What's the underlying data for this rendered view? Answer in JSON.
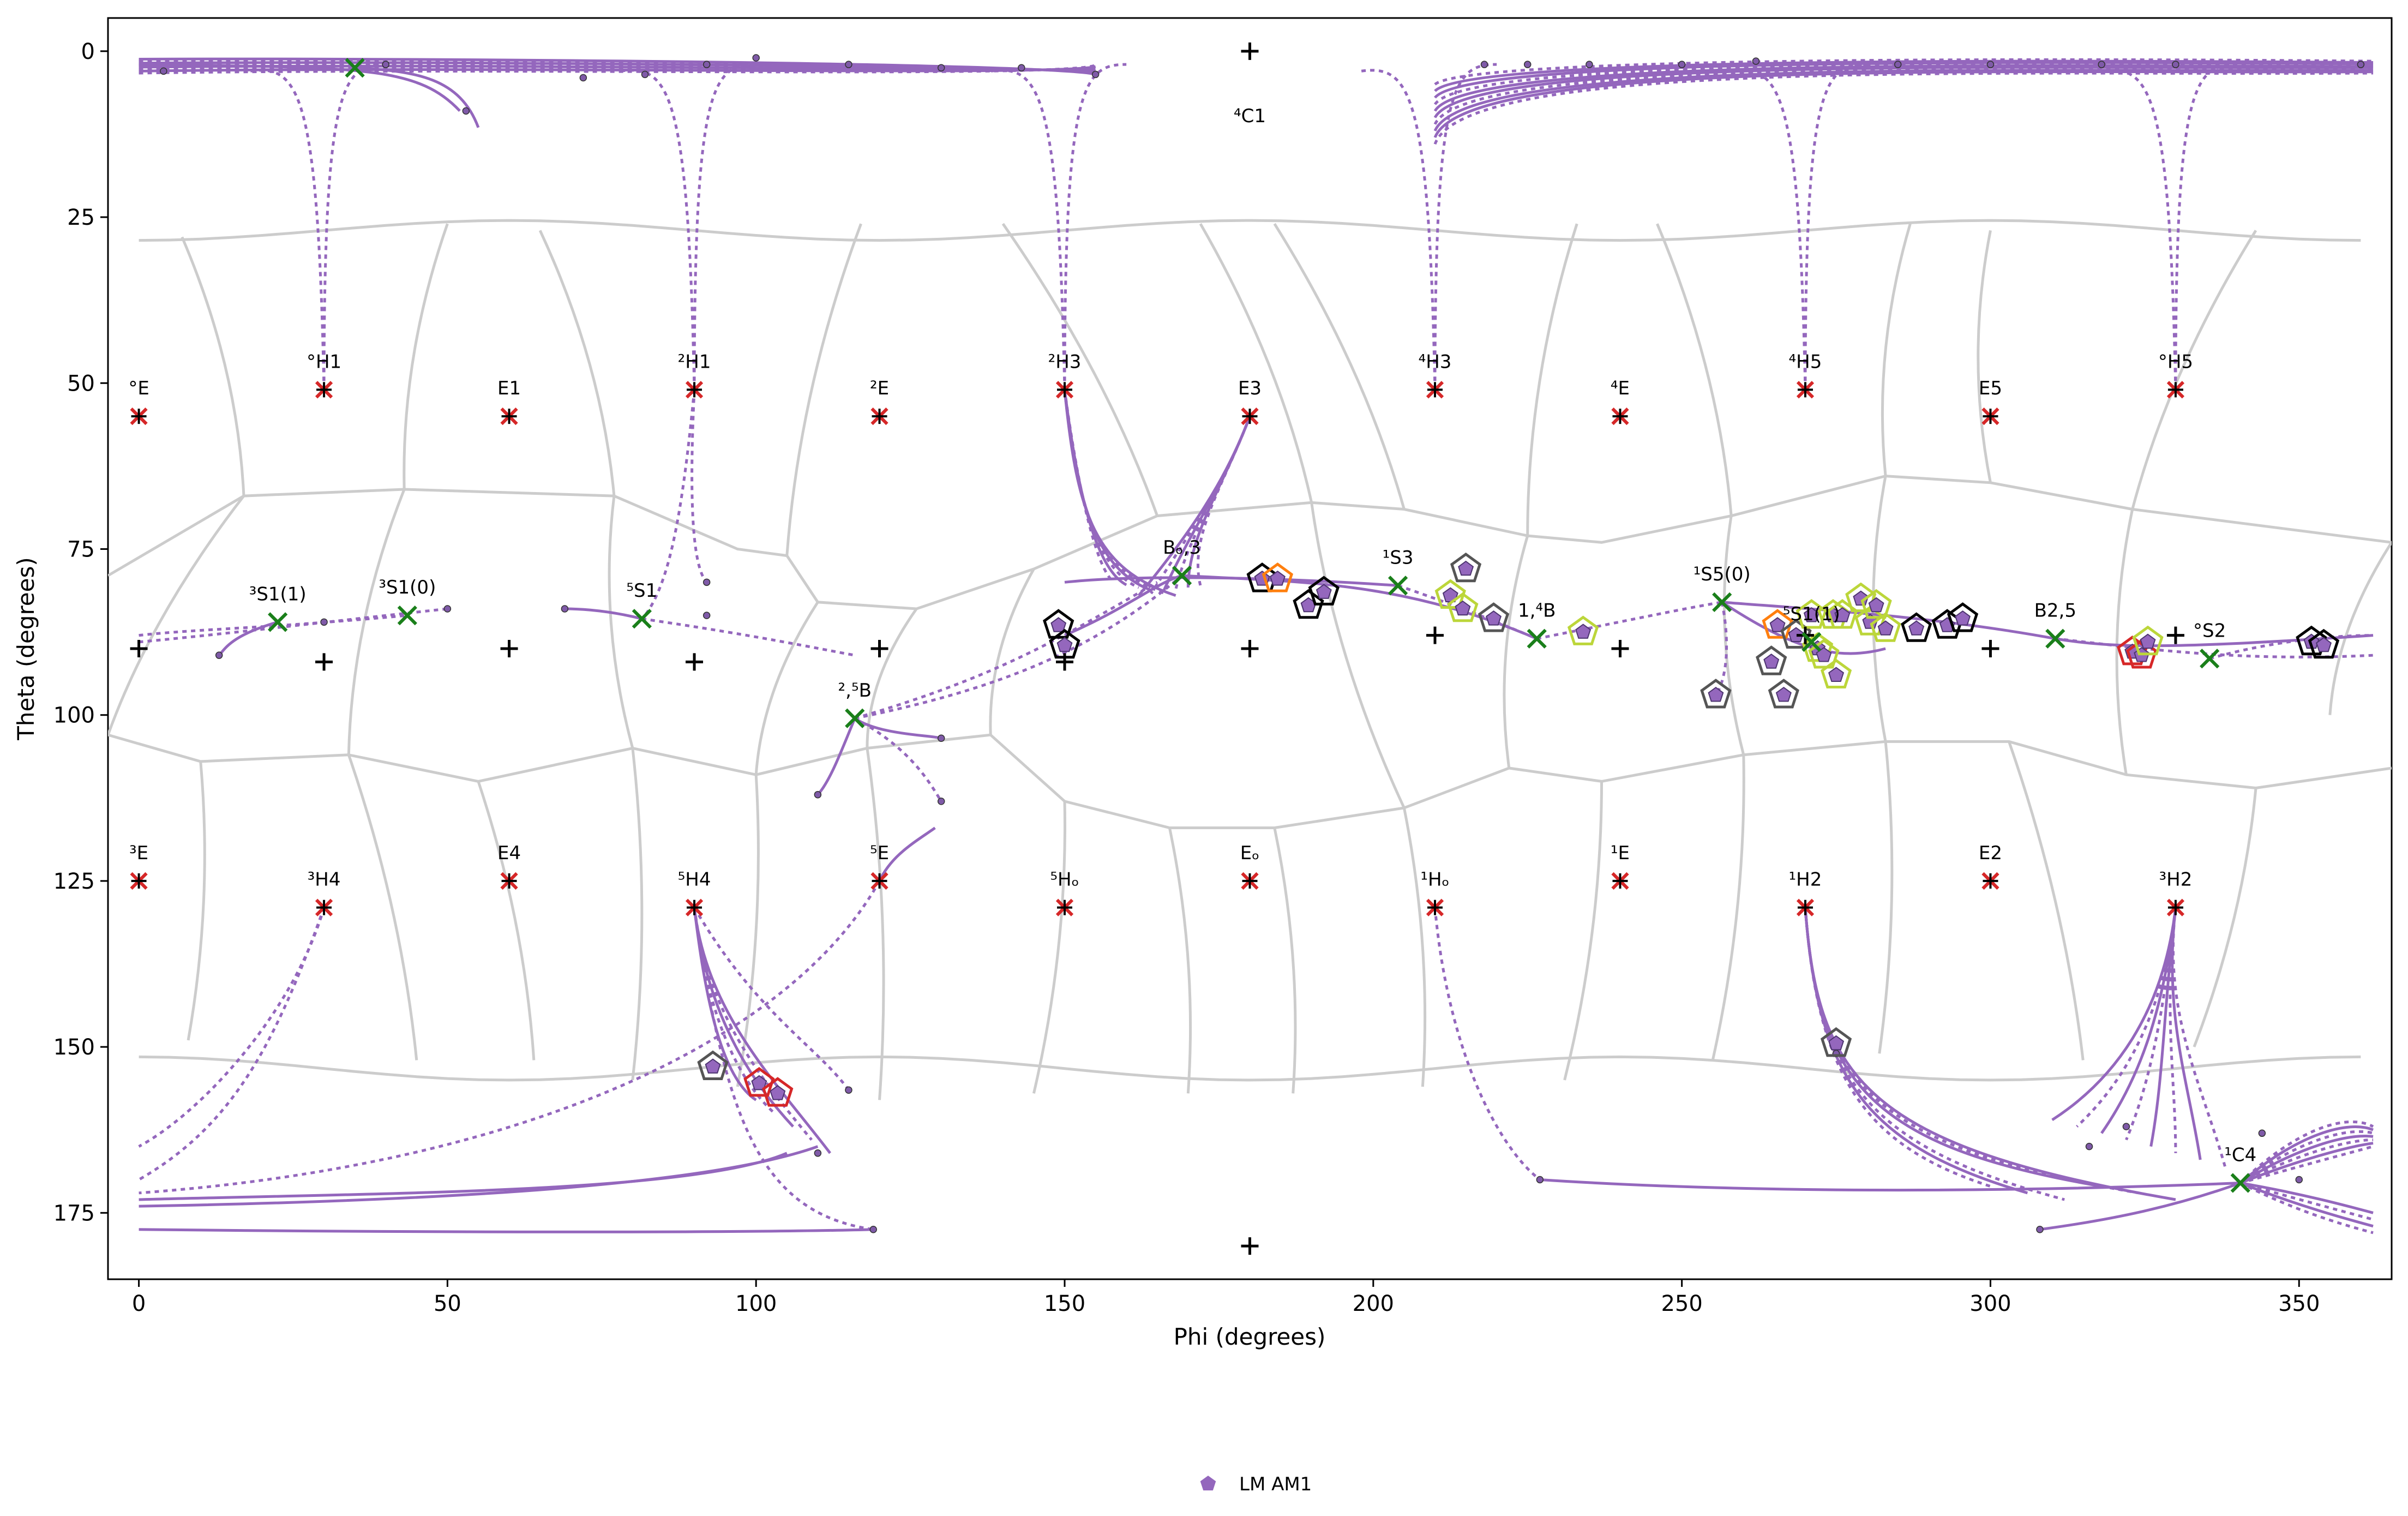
{
  "chart_data": {
    "type": "scatter",
    "xlabel": "Phi (degrees)",
    "ylabel": "Theta (degrees)",
    "xlim": [
      -5,
      365
    ],
    "ylim": [
      185,
      -5
    ],
    "xticks": [
      0,
      50,
      100,
      150,
      200,
      250,
      300,
      350
    ],
    "yticks": [
      0,
      25,
      50,
      75,
      100,
      125,
      150,
      175
    ],
    "xtick_labels": [
      "0",
      "50",
      "100",
      "150",
      "200",
      "250",
      "300",
      "350"
    ],
    "ytick_labels": [
      "0",
      "25",
      "50",
      "75",
      "100",
      "125",
      "150",
      "175"
    ],
    "legend": {
      "placement": "bottom-center",
      "entries": [
        {
          "label": "LM AM1",
          "marker": "pentagon",
          "color": "#9467bd"
        }
      ]
    },
    "colors": {
      "pathway": "#9467bd",
      "canonical_marker": "#d62728",
      "transition_state": "#1a7f1a",
      "cell_boundary": "#cccccc",
      "plus_marker": "#000000"
    },
    "canonical_points": [
      {
        "label": "°E",
        "phi": 0,
        "theta": 55
      },
      {
        "label": "°H1",
        "phi": 30,
        "theta": 51
      },
      {
        "label": "E1",
        "phi": 60,
        "theta": 55
      },
      {
        "label": "²H1",
        "phi": 90,
        "theta": 51
      },
      {
        "label": "²E",
        "phi": 120,
        "theta": 55
      },
      {
        "label": "²H3",
        "phi": 150,
        "theta": 51
      },
      {
        "label": "E3",
        "phi": 180,
        "theta": 55
      },
      {
        "label": "⁴H3",
        "phi": 210,
        "theta": 51
      },
      {
        "label": "⁴E",
        "phi": 240,
        "theta": 55
      },
      {
        "label": "⁴H5",
        "phi": 270,
        "theta": 51
      },
      {
        "label": "E5",
        "phi": 300,
        "theta": 55
      },
      {
        "label": "°H5",
        "phi": 330,
        "theta": 51
      },
      {
        "label": "³E",
        "phi": 0,
        "theta": 125
      },
      {
        "label": "³H4",
        "phi": 30,
        "theta": 129
      },
      {
        "label": "E4",
        "phi": 60,
        "theta": 125
      },
      {
        "label": "⁵H4",
        "phi": 90,
        "theta": 129
      },
      {
        "label": "⁵E",
        "phi": 120,
        "theta": 125
      },
      {
        "label": "⁵Hₒ",
        "phi": 150,
        "theta": 129
      },
      {
        "label": "Eₒ",
        "phi": 180,
        "theta": 125
      },
      {
        "label": "¹Hₒ",
        "phi": 210,
        "theta": 129
      },
      {
        "label": "¹E",
        "phi": 240,
        "theta": 125
      },
      {
        "label": "¹H2",
        "phi": 270,
        "theta": 129
      },
      {
        "label": "E2",
        "phi": 300,
        "theta": 125
      },
      {
        "label": "³H2",
        "phi": 330,
        "theta": 129
      }
    ],
    "plus_points": [
      {
        "label": "⁴C1",
        "phi": 180,
        "theta": 0
      },
      {
        "label": "",
        "phi": 180,
        "theta": 180
      },
      {
        "label": "",
        "phi": 0,
        "theta": 90
      },
      {
        "label": "",
        "phi": 30,
        "theta": 92
      },
      {
        "label": "",
        "phi": 60,
        "theta": 90
      },
      {
        "label": "",
        "phi": 90,
        "theta": 92
      },
      {
        "label": "",
        "phi": 120,
        "theta": 90
      },
      {
        "label": "",
        "phi": 150,
        "theta": 92
      },
      {
        "label": "",
        "phi": 180,
        "theta": 90
      },
      {
        "label": "",
        "phi": 210,
        "theta": 88
      },
      {
        "label": "",
        "phi": 240,
        "theta": 90
      },
      {
        "label": "",
        "phi": 270,
        "theta": 88
      },
      {
        "label": "",
        "phi": 300,
        "theta": 90
      },
      {
        "label": "",
        "phi": 330,
        "theta": 88
      }
    ],
    "transition_states": [
      {
        "label": "",
        "phi": 35,
        "theta": 2.5
      },
      {
        "label": "³S1(1)",
        "phi": 22.5,
        "theta": 86
      },
      {
        "label": "³S1(0)",
        "phi": 43.5,
        "theta": 85
      },
      {
        "label": "⁵S1",
        "phi": 81.5,
        "theta": 85.5
      },
      {
        "label": "²,⁵B",
        "phi": 116,
        "theta": 100.5
      },
      {
        "label": "Bₒ,3",
        "phi": 169,
        "theta": 79
      },
      {
        "label": "¹S3",
        "phi": 204,
        "theta": 80.5
      },
      {
        "label": "1,⁴B",
        "phi": 226.5,
        "theta": 88.5
      },
      {
        "label": "¹S5(0)",
        "phi": 256.5,
        "theta": 83
      },
      {
        "label": "⁵S1(1)",
        "phi": 271,
        "theta": 89
      },
      {
        "label": "B2,5",
        "phi": 310.5,
        "theta": 88.5
      },
      {
        "label": "°S2",
        "phi": 335.5,
        "theta": 91.5
      },
      {
        "label": "¹C4",
        "phi": 340.5,
        "theta": 170.5
      }
    ],
    "lm_am1_pentagons": [
      {
        "phi": 93,
        "theta": 153,
        "ring": "gray"
      },
      {
        "phi": 100.5,
        "theta": 155.5,
        "ring": "red"
      },
      {
        "phi": 103.5,
        "theta": 157,
        "ring": "red"
      },
      {
        "phi": 149,
        "theta": 86.5,
        "ring": "black"
      },
      {
        "phi": 150,
        "theta": 89.5,
        "ring": "black"
      },
      {
        "phi": 182,
        "theta": 79.5,
        "ring": "black"
      },
      {
        "phi": 184.5,
        "theta": 79.5,
        "ring": "orange"
      },
      {
        "phi": 189.5,
        "theta": 83.5,
        "ring": "black"
      },
      {
        "phi": 192,
        "theta": 81.5,
        "ring": "black"
      },
      {
        "phi": 212.5,
        "theta": 82,
        "ring": "green"
      },
      {
        "phi": 214.5,
        "theta": 84,
        "ring": "green"
      },
      {
        "phi": 215,
        "theta": 78,
        "ring": "gray"
      },
      {
        "phi": 219.5,
        "theta": 85.5,
        "ring": "gray"
      },
      {
        "phi": 234,
        "theta": 87.5,
        "ring": "green"
      },
      {
        "phi": 255.5,
        "theta": 97,
        "ring": "gray"
      },
      {
        "phi": 264.5,
        "theta": 92,
        "ring": "gray"
      },
      {
        "phi": 265.5,
        "theta": 86.5,
        "ring": "orange"
      },
      {
        "phi": 266.5,
        "theta": 97,
        "ring": "gray"
      },
      {
        "phi": 268.5,
        "theta": 88,
        "ring": "gray"
      },
      {
        "phi": 271,
        "theta": 85,
        "ring": "green"
      },
      {
        "phi": 272,
        "theta": 90,
        "ring": "green"
      },
      {
        "phi": 273,
        "theta": 91,
        "ring": "green"
      },
      {
        "phi": 274.5,
        "theta": 85,
        "ring": "green"
      },
      {
        "phi": 275,
        "theta": 94,
        "ring": "green"
      },
      {
        "phi": 276,
        "theta": 85,
        "ring": "green"
      },
      {
        "phi": 279,
        "theta": 82.5,
        "ring": "green"
      },
      {
        "phi": 280.5,
        "theta": 86,
        "ring": "green"
      },
      {
        "phi": 281.5,
        "theta": 83.5,
        "ring": "green"
      },
      {
        "phi": 283,
        "theta": 87,
        "ring": "green"
      },
      {
        "phi": 275,
        "theta": 149.5,
        "ring": "gray"
      },
      {
        "phi": 288,
        "theta": 87,
        "ring": "black"
      },
      {
        "phi": 293,
        "theta": 86.5,
        "ring": "black"
      },
      {
        "phi": 295.5,
        "theta": 85.5,
        "ring": "black"
      },
      {
        "phi": 323,
        "theta": 90.5,
        "ring": "red"
      },
      {
        "phi": 324.5,
        "theta": 91,
        "ring": "red"
      },
      {
        "phi": 325.5,
        "theta": 89,
        "ring": "green"
      },
      {
        "phi": 352,
        "theta": 89,
        "ring": "black"
      },
      {
        "phi": 354,
        "theta": 89.5,
        "ring": "black"
      }
    ],
    "ring_colors": {
      "gray": "#555555",
      "red": "#d62728",
      "black": "#000000",
      "orange": "#ff7f0e",
      "green": "#bcd63a"
    }
  }
}
